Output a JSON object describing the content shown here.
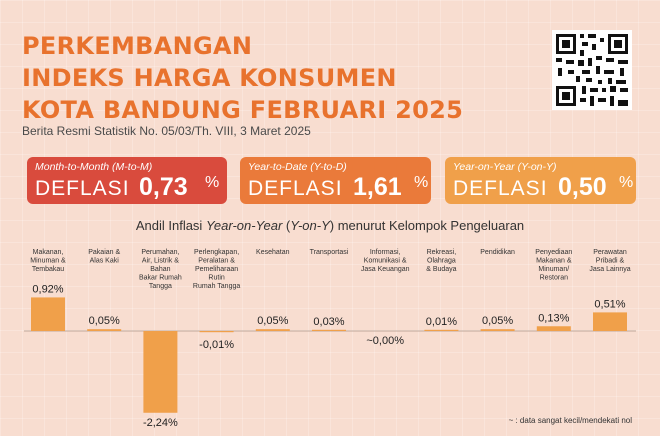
{
  "title_lines": [
    "PERKEMBANGAN",
    "INDEKS HARGA KONSUMEN",
    "KOTA BANDUNG FEBRUARI 2025"
  ],
  "subtitle": "Berita Resmi Statistik No. 05/03/Th. VIII, 3 Maret 2025",
  "cards": [
    {
      "label": "Month-to-Month (M-to-M)",
      "type": "DEFLASI",
      "value": "0,73",
      "unit": "%",
      "color": "#d94b3d"
    },
    {
      "label": "Year-to-Date (Y-to-D)",
      "type": "DEFLASI",
      "value": "1,61",
      "unit": "%",
      "color": "#ea7a3a"
    },
    {
      "label": "Year-on-Year (Y-on-Y)",
      "type": "DEFLASI",
      "value": "0,50",
      "unit": "%",
      "color": "#f0a04a"
    }
  ],
  "chart_title": {
    "pre": "Andil Inflasi ",
    "italic": "Year-on-Year",
    "mid": " (",
    "italic2": "Y-on-Y",
    "post": ") menurut Kelompok Pengeluaran"
  },
  "footnote": "~ : data sangat kecil/mendekati nol",
  "chart_data": {
    "type": "bar",
    "title": "Andil Inflasi Year-on-Year (Y-on-Y) menurut Kelompok Pengeluaran",
    "categories": [
      "Makanan, Minuman & Tembakau",
      "Pakaian & Alas Kaki",
      "Perumahan, Air, Listrik & Bahan Bakar Rumah Tangga",
      "Perlengkapan, Peralatan & Pemeliharaan Rutin Rumah Tangga",
      "Kesehatan",
      "Transportasi",
      "Informasi, Komunikasi & Jasa Keuangan",
      "Rekreasi, Olahraga & Budaya",
      "Pendidikan",
      "Penyediaan Makanan & Minuman/ Restoran",
      "Perawatan Pribadi & Jasa Lainnya"
    ],
    "category_lines": [
      [
        "Makanan,",
        "Minuman &",
        "Tembakau"
      ],
      [
        "Pakaian &",
        "Alas Kaki"
      ],
      [
        "Perumahan,",
        "Air, Listrik &",
        "Bahan",
        "Bakar Rumah",
        "Tangga"
      ],
      [
        "Perlengkapan,",
        "Peralatan &",
        "Pemeliharaan",
        "Rutin",
        "Rumah Tangga"
      ],
      [
        "Kesehatan"
      ],
      [
        "Transportasi"
      ],
      [
        "Informasi,",
        "Komunikasi &",
        "Jasa Keuangan"
      ],
      [
        "Rekreasi,",
        "Olahraga",
        "& Budaya"
      ],
      [
        "Pendidikan"
      ],
      [
        "Penyediaan",
        "Makanan &",
        "Minuman/",
        "Restoran"
      ],
      [
        "Perawatan",
        "Pribadi &",
        "Jasa Lainnya"
      ]
    ],
    "values": [
      0.92,
      0.05,
      -2.24,
      -0.01,
      0.05,
      0.03,
      0.0,
      0.01,
      0.05,
      0.13,
      0.51
    ],
    "labels": [
      "0,92%",
      "0,05%",
      "-2,24%",
      "-0,01%",
      "0,05%",
      "0,03%",
      "~0,00%",
      "0,01%",
      "0,05%",
      "0,13%",
      "0,51%"
    ],
    "bar_color": "#f0a04a",
    "ylim": [
      -2.24,
      0.92
    ],
    "grid": false,
    "legend": "none"
  }
}
